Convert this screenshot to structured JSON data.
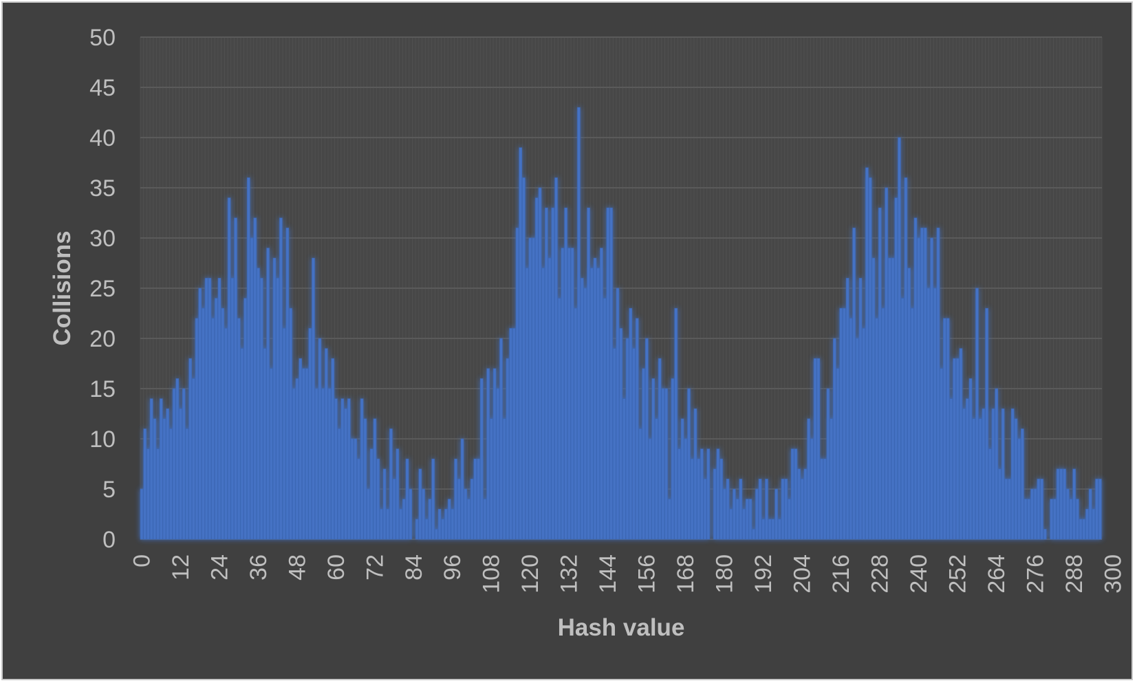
{
  "chart_data": {
    "type": "bar",
    "title": "",
    "xlabel": "Hash value",
    "ylabel": "Collisions",
    "ylim": [
      0,
      50
    ],
    "yticks": [
      0,
      5,
      10,
      15,
      20,
      25,
      30,
      35,
      40,
      45,
      50
    ],
    "xticks": [
      0,
      12,
      24,
      36,
      48,
      60,
      72,
      84,
      96,
      108,
      120,
      132,
      144,
      156,
      168,
      180,
      192,
      204,
      216,
      228,
      240,
      252,
      264,
      276,
      288,
      300
    ],
    "grid": true,
    "legend": "none",
    "x_start": 0,
    "colors": {
      "bar": "#4472c4",
      "background": "#404040",
      "plot_background": "#474747",
      "grid": "#5a5a5a",
      "text": "#bfbfbf"
    },
    "values": [
      5,
      11,
      9,
      14,
      12,
      9,
      14,
      12,
      13,
      11,
      15,
      16,
      13,
      15,
      11,
      18,
      16,
      22,
      25,
      23,
      26,
      26,
      22,
      24,
      26,
      23,
      21,
      34,
      26,
      32,
      22,
      19,
      24,
      36,
      30,
      32,
      27,
      26,
      19,
      29,
      17,
      28,
      26,
      32,
      21,
      31,
      23,
      15,
      16,
      18,
      17,
      17,
      21,
      28,
      15,
      20,
      15,
      19,
      15,
      18,
      14,
      11,
      14,
      13,
      14,
      10,
      10,
      8,
      14,
      12,
      5,
      9,
      12,
      8,
      3,
      7,
      3,
      11,
      6,
      9,
      3,
      4,
      8,
      5,
      0,
      2,
      7,
      5,
      2,
      4,
      8,
      1,
      3,
      2,
      3,
      4,
      3,
      8,
      6,
      10,
      5,
      4,
      6,
      8,
      8,
      16,
      4,
      17,
      12,
      17,
      15,
      20,
      12,
      18,
      21,
      21,
      31,
      39,
      36,
      27,
      30,
      30,
      34,
      35,
      27,
      33,
      28,
      33,
      36,
      24,
      29,
      33,
      29,
      29,
      23,
      43,
      26,
      25,
      33,
      27,
      28,
      27,
      29,
      24,
      33,
      33,
      19,
      25,
      21,
      14,
      20,
      23,
      19,
      22,
      11,
      17,
      20,
      10,
      16,
      12,
      18,
      15,
      15,
      4,
      16,
      23,
      9,
      12,
      10,
      15,
      8,
      13,
      8,
      9,
      6,
      9,
      0,
      7,
      9,
      8,
      5,
      6,
      3,
      5,
      4,
      6,
      3,
      4,
      4,
      1,
      5,
      6,
      2,
      6,
      2,
      2,
      5,
      2,
      6,
      6,
      4,
      9,
      9,
      7,
      6,
      7,
      12,
      10,
      18,
      18,
      8,
      8,
      15,
      12,
      20,
      17,
      23,
      23,
      26,
      22,
      31,
      20,
      26,
      21,
      37,
      36,
      28,
      22,
      33,
      23,
      35,
      28,
      28,
      34,
      40,
      24,
      36,
      27,
      23,
      32,
      30,
      31,
      31,
      25,
      30,
      25,
      31,
      17,
      22,
      22,
      14,
      18,
      18,
      19,
      13,
      14,
      16,
      12,
      25,
      12,
      13,
      23,
      9,
      13,
      15,
      7,
      13,
      6,
      6,
      13,
      12,
      10,
      11,
      4,
      4,
      5,
      5,
      6,
      6,
      1,
      0,
      4,
      4,
      7,
      7,
      7,
      5,
      4,
      7,
      4,
      2,
      2,
      3,
      5,
      3,
      6,
      6
    ]
  }
}
